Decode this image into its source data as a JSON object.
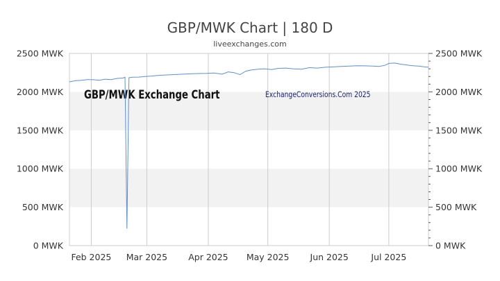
{
  "chart_data": {
    "type": "line",
    "title": "GBP/MWK Chart | 180 D",
    "subtitle": "liveexchanges.com",
    "watermark_left": "GBP/MWK Exchange Chart",
    "watermark_right": "ExchangeConversions.Com 2025",
    "ylim": [
      0,
      2500
    ],
    "y_ticks": [
      {
        "value": 0,
        "label": "0 MWK"
      },
      {
        "value": 500,
        "label": "500 MWK"
      },
      {
        "value": 1000,
        "label": "1000 MWK"
      },
      {
        "value": 1500,
        "label": "1500 MWK"
      },
      {
        "value": 2000,
        "label": "2000 MWK"
      },
      {
        "value": 2500,
        "label": "2500 MWK"
      }
    ],
    "x_range": [
      "2025-01-21",
      "2025-07-21"
    ],
    "x_ticks": [
      {
        "date": "2025-02-01",
        "label": "Feb 2025"
      },
      {
        "date": "2025-03-01",
        "label": "Mar 2025"
      },
      {
        "date": "2025-04-01",
        "label": "Apr 2025"
      },
      {
        "date": "2025-05-01",
        "label": "May 2025"
      },
      {
        "date": "2025-06-01",
        "label": "Jun 2025"
      },
      {
        "date": "2025-07-01",
        "label": "Jul 2025"
      }
    ],
    "grid": true,
    "colors": {
      "line": "#5b8fd6",
      "band": "#f2f2f2",
      "grid": "#cccccc"
    },
    "series": [
      {
        "values": [
          [
            "2025-01-21",
            2130
          ],
          [
            "2025-01-24",
            2145
          ],
          [
            "2025-01-27",
            2150
          ],
          [
            "2025-01-30",
            2160
          ],
          [
            "2025-02-02",
            2158
          ],
          [
            "2025-02-05",
            2150
          ],
          [
            "2025-02-08",
            2165
          ],
          [
            "2025-02-11",
            2160
          ],
          [
            "2025-02-14",
            2175
          ],
          [
            "2025-02-17",
            2180
          ],
          [
            "2025-02-18",
            2190
          ],
          [
            "2025-02-19",
            220
          ],
          [
            "2025-02-20",
            2185
          ],
          [
            "2025-02-22",
            2190
          ],
          [
            "2025-02-25",
            2192
          ],
          [
            "2025-02-28",
            2200
          ],
          [
            "2025-03-03",
            2205
          ],
          [
            "2025-03-07",
            2215
          ],
          [
            "2025-03-11",
            2220
          ],
          [
            "2025-03-15",
            2225
          ],
          [
            "2025-03-19",
            2230
          ],
          [
            "2025-03-23",
            2235
          ],
          [
            "2025-03-27",
            2238
          ],
          [
            "2025-03-31",
            2240
          ],
          [
            "2025-04-04",
            2245
          ],
          [
            "2025-04-08",
            2230
          ],
          [
            "2025-04-11",
            2260
          ],
          [
            "2025-04-14",
            2250
          ],
          [
            "2025-04-17",
            2225
          ],
          [
            "2025-04-20",
            2270
          ],
          [
            "2025-04-23",
            2285
          ],
          [
            "2025-04-26",
            2295
          ],
          [
            "2025-04-29",
            2300
          ],
          [
            "2025-05-03",
            2290
          ],
          [
            "2025-05-06",
            2305
          ],
          [
            "2025-05-10",
            2310
          ],
          [
            "2025-05-14",
            2300
          ],
          [
            "2025-05-18",
            2295
          ],
          [
            "2025-05-22",
            2315
          ],
          [
            "2025-05-26",
            2310
          ],
          [
            "2025-05-30",
            2320
          ],
          [
            "2025-06-03",
            2325
          ],
          [
            "2025-06-07",
            2330
          ],
          [
            "2025-06-11",
            2335
          ],
          [
            "2025-06-15",
            2340
          ],
          [
            "2025-06-19",
            2338
          ],
          [
            "2025-06-23",
            2335
          ],
          [
            "2025-06-26",
            2330
          ],
          [
            "2025-06-29",
            2345
          ],
          [
            "2025-07-01",
            2370
          ],
          [
            "2025-07-04",
            2375
          ],
          [
            "2025-07-07",
            2360
          ],
          [
            "2025-07-10",
            2350
          ],
          [
            "2025-07-13",
            2340
          ],
          [
            "2025-07-16",
            2335
          ],
          [
            "2025-07-19",
            2325
          ],
          [
            "2025-07-21",
            2320
          ]
        ]
      }
    ]
  }
}
